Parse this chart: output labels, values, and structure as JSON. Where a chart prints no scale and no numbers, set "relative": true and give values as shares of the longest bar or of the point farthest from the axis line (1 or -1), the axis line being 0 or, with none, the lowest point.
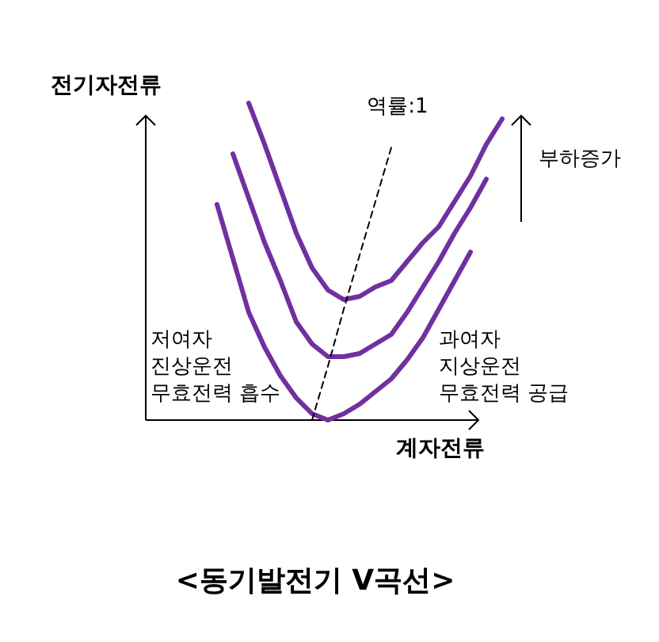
{
  "chart_data": {
    "type": "line",
    "relative": true,
    "title": "<동기발전기 V곡선>",
    "xlabel": "계자전류",
    "ylabel": "전기자전류",
    "annotations": [
      "저여자\n진상운전\n무효전력 흡수",
      "과여자\n지상운전\n무효전력 공급",
      "부하증가"
    ],
    "categories": [
      null,
      null,
      null,
      null,
      null,
      null,
      null,
      null,
      null,
      null,
      null,
      null,
      null,
      null,
      null,
      null,
      null,
      null,
      null
    ],
    "series": [
      {
        "color": "#7030a0",
        "values": [
          0.68,
          0.51,
          0.34,
          0.23,
          0.14,
          0.07,
          0.02,
          0,
          0.02,
          0.05,
          0.09,
          0.13,
          0.19,
          0.26,
          0.35,
          0.44,
          0.53,
          null,
          null
        ]
      },
      {
        "color": "#7030a0",
        "values": [
          null,
          0.84,
          0.7,
          0.56,
          0.44,
          0.31,
          0.24,
          0.2,
          0.2,
          0.21,
          0.24,
          0.27,
          0.34,
          0.42,
          0.5,
          0.59,
          0.67,
          0.76,
          null
        ]
      },
      {
        "color": "#7030a0",
        "values": [
          null,
          null,
          1.0,
          0.87,
          0.73,
          0.59,
          0.48,
          0.41,
          0.38,
          0.39,
          0.42,
          0.44,
          0.5,
          0.56,
          0.61,
          0.69,
          0.77,
          0.87,
          0.95
        ]
      },
      {
        "name": "역률:1",
        "color": "#000000",
        "line_style": "dashed",
        "values": [
          null,
          null,
          null,
          null,
          null,
          null,
          0,
          0.17,
          0.35,
          0.52,
          0.69,
          0.86,
          null,
          null,
          null,
          null,
          null,
          null,
          null
        ]
      }
    ]
  }
}
